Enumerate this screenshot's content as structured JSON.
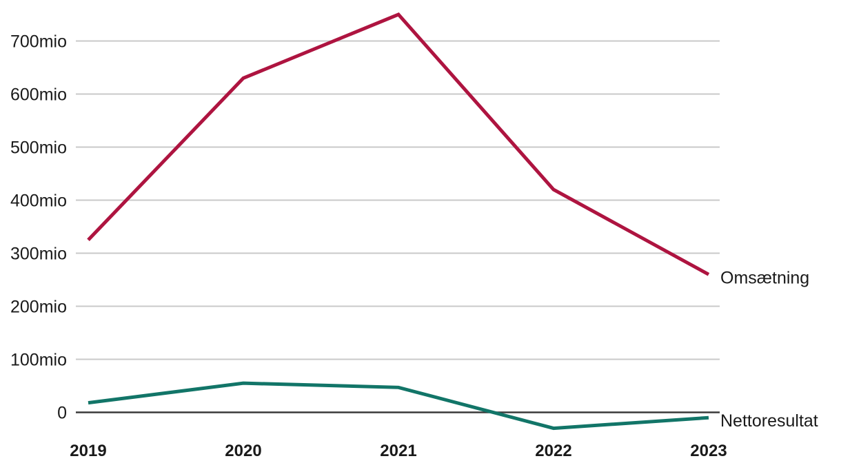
{
  "chart_data": {
    "type": "line",
    "title": "",
    "xlabel": "",
    "ylabel": "",
    "unit": "mio",
    "x_labels": [
      "2019",
      "2020",
      "2021",
      "2022",
      "2023"
    ],
    "series": [
      {
        "name": "Omsætning",
        "color": "#ae1440",
        "values": [
          325,
          630,
          750,
          420,
          260
        ]
      },
      {
        "name": "Nettoresultat",
        "color": "#127568",
        "values": [
          18,
          55,
          47,
          -30,
          -10
        ]
      }
    ],
    "y_ticks": [
      {
        "value": 0,
        "label": "0"
      },
      {
        "value": 100,
        "label": "100mio"
      },
      {
        "value": 200,
        "label": "200mio"
      },
      {
        "value": 300,
        "label": "300mio"
      },
      {
        "value": 400,
        "label": "400mio"
      },
      {
        "value": 500,
        "label": "500mio"
      },
      {
        "value": 600,
        "label": "600mio"
      },
      {
        "value": 700,
        "label": "700mio"
      }
    ],
    "ylim": [
      -90,
      780
    ],
    "grid": true,
    "legend_position": "right-of-line-end",
    "colors": {
      "gridline": "#c9c9c9",
      "zero_line": "#3a3a3a",
      "text": "#1a1a1a",
      "background": "#ffffff"
    }
  }
}
